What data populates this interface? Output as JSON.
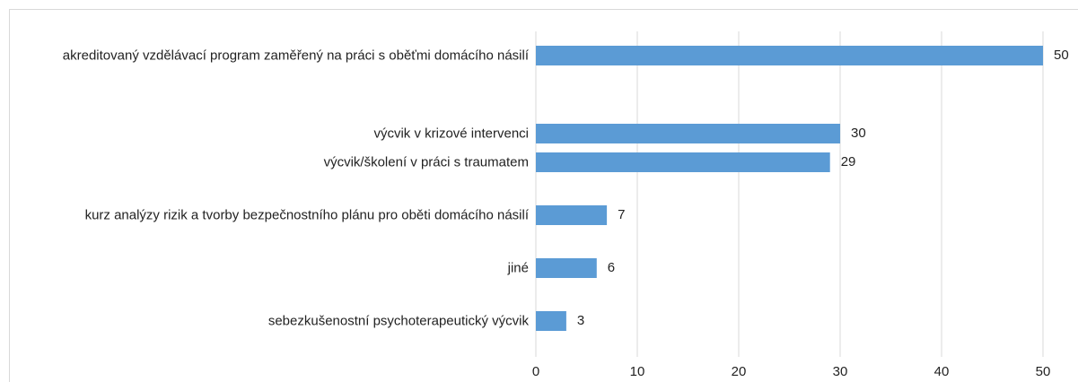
{
  "chart_data": {
    "type": "barh",
    "categories": [
      "akreditovaný vzdělávací program zaměřený na práci s oběťmi domácího násilí",
      "výcvik v krizové intervenci",
      "výcvik/školení v práci s traumatem",
      "kurz analýzy rizik a tvorby bezpečnostního plánu pro oběti domácího násilí",
      "jiné",
      "sebezkušenostní psychoterapeutický výcvik"
    ],
    "values": [
      50,
      30,
      29,
      7,
      6,
      3
    ],
    "color": "#5b9bd5",
    "xlim": [
      0,
      50
    ],
    "xticks": [
      0,
      10,
      20,
      30,
      40,
      50
    ],
    "grid": true
  }
}
